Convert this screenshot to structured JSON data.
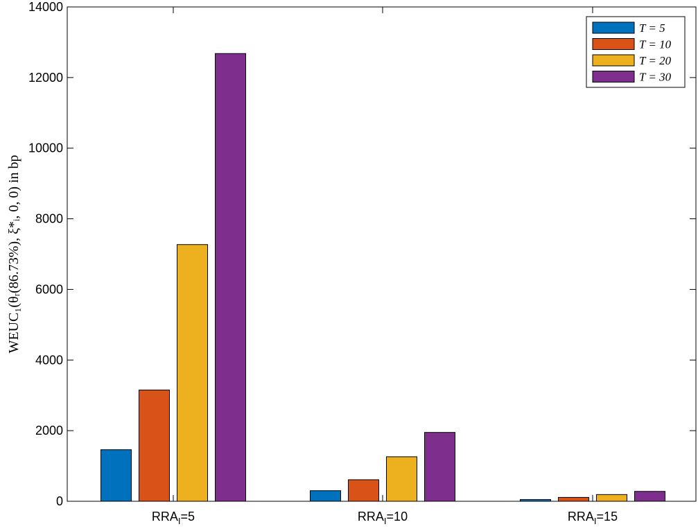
{
  "chart_data": {
    "type": "bar",
    "categories": [
      "RRA",
      "RRA",
      "RRA"
    ],
    "category_subscripts": [
      "I",
      "I",
      "I"
    ],
    "category_suffixes": [
      "=5",
      "=10",
      "=15"
    ],
    "series": [
      {
        "name": "T = 5",
        "color": "#0072BD",
        "values": [
          1460,
          300,
          50
        ]
      },
      {
        "name": "T = 10",
        "color": "#D95319",
        "values": [
          3150,
          610,
          110
        ]
      },
      {
        "name": "T = 20",
        "color": "#EDB120",
        "values": [
          7270,
          1260,
          190
        ]
      },
      {
        "name": "T = 30",
        "color": "#7E2F8E",
        "values": [
          12680,
          1950,
          280
        ]
      }
    ],
    "ylabel": "WEUC₁(θᵣ(86.73%), ξ*ᵢ, 0, 0) in bp",
    "ylim": [
      0,
      14000
    ],
    "yticks": [
      "0",
      "2000",
      "4000",
      "6000",
      "8000",
      "10000",
      "12000",
      "14000"
    ],
    "legend_position": "top-right",
    "grid": false
  }
}
